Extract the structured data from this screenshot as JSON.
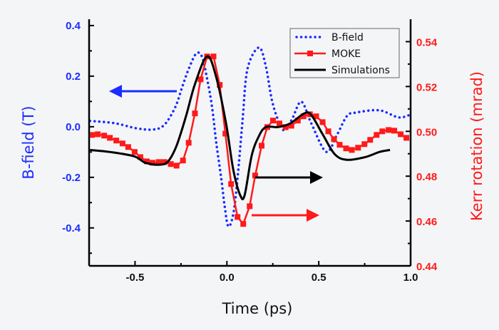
{
  "chart_data": {
    "type": "line",
    "xlabel": "Time (ps)",
    "xlim": [
      -0.75,
      1.0
    ],
    "xticks": [
      "-0.5",
      "0.0",
      "0.5",
      "1.0"
    ],
    "ylabel_left": "B-field (T)",
    "ylim_left": [
      -0.55,
      0.425
    ],
    "yticks_left": [
      "0.4",
      "0.2",
      "0.0",
      "-0.2",
      "-0.4"
    ],
    "ylabel_right": "Kerr rotation (mrad)",
    "ylim_right": [
      0.44,
      0.55
    ],
    "yticks_right": [
      "0.54",
      "0.52",
      "0.50",
      "0.48",
      "0.46",
      "0.44"
    ],
    "grid": false,
    "legend_position": "top-right",
    "colors": {
      "bfield": "#1a2cff",
      "moke": "#ff1a1a",
      "sim": "#000000",
      "left_axis": "#1a2cff",
      "right_axis": "#ff1a1a"
    },
    "series": [
      {
        "name": "B-field",
        "axis": "left",
        "style": "dotted",
        "x": [
          -0.745,
          -0.61,
          -0.494,
          -0.4,
          -0.34,
          -0.28,
          -0.243,
          -0.205,
          -0.166,
          -0.135,
          -0.108,
          -0.081,
          -0.058,
          -0.031,
          -0.012,
          0.008,
          0.035,
          0.058,
          0.085,
          0.112,
          0.174,
          0.212,
          0.251,
          0.309,
          0.355,
          0.405,
          0.459,
          0.54,
          0.598,
          0.653,
          0.703,
          0.83,
          0.934,
          1.0
        ],
        "y": [
          0.023,
          0.014,
          -0.006,
          -0.011,
          0.008,
          0.079,
          0.158,
          0.234,
          0.29,
          0.276,
          0.19,
          0.079,
          -0.062,
          -0.203,
          -0.315,
          -0.394,
          -0.344,
          -0.203,
          0.023,
          0.228,
          0.313,
          0.239,
          0.087,
          -0.014,
          0.031,
          0.099,
          0.014,
          -0.099,
          -0.034,
          0.042,
          0.056,
          0.065,
          0.037,
          0.048
        ]
      },
      {
        "name": "MOKE",
        "axis": "right",
        "style": "line-square",
        "x": [
          -0.734,
          -0.703,
          -0.668,
          -0.637,
          -0.602,
          -0.568,
          -0.537,
          -0.502,
          -0.471,
          -0.436,
          -0.405,
          -0.371,
          -0.34,
          -0.305,
          -0.274,
          -0.239,
          -0.208,
          -0.174,
          -0.143,
          -0.108,
          -0.073,
          -0.039,
          -0.008,
          0.023,
          0.058,
          0.089,
          0.124,
          0.154,
          0.189,
          0.22,
          0.251,
          0.286,
          0.32,
          0.351,
          0.386,
          0.417,
          0.452,
          0.486,
          0.521,
          0.552,
          0.583,
          0.614,
          0.649,
          0.68,
          0.714,
          0.749,
          0.78,
          0.815,
          0.846,
          0.88,
          0.911,
          0.946,
          0.977
        ],
        "y": [
          0.4984,
          0.4987,
          0.4981,
          0.4971,
          0.4959,
          0.4946,
          0.493,
          0.4908,
          0.4885,
          0.4866,
          0.486,
          0.4863,
          0.4863,
          0.4854,
          0.4847,
          0.487,
          0.4949,
          0.508,
          0.5232,
          0.5334,
          0.5334,
          0.5207,
          0.499,
          0.4765,
          0.4618,
          0.4587,
          0.4666,
          0.4803,
          0.4936,
          0.5019,
          0.5048,
          0.5035,
          0.5019,
          0.5025,
          0.5048,
          0.5067,
          0.5076,
          0.5067,
          0.5041,
          0.5,
          0.4965,
          0.494,
          0.4924,
          0.4917,
          0.4927,
          0.4943,
          0.4962,
          0.4984,
          0.5,
          0.5006,
          0.5003,
          0.4987,
          0.4971
        ]
      },
      {
        "name": "Simulations",
        "axis": "right",
        "style": "solid",
        "x": [
          -0.745,
          -0.637,
          -0.506,
          -0.444,
          -0.367,
          -0.32,
          -0.274,
          -0.224,
          -0.174,
          -0.108,
          -0.058,
          -0.004,
          0.035,
          0.073,
          0.097,
          0.135,
          0.174,
          0.212,
          0.278,
          0.344,
          0.421,
          0.459,
          0.521,
          0.587,
          0.653,
          0.753,
          0.83,
          0.888
        ],
        "y": [
          0.4917,
          0.4908,
          0.4889,
          0.486,
          0.4851,
          0.4866,
          0.4936,
          0.5064,
          0.521,
          0.5334,
          0.5242,
          0.5032,
          0.4828,
          0.4714,
          0.4717,
          0.4892,
          0.4978,
          0.5019,
          0.5019,
          0.5035,
          0.508,
          0.5073,
          0.4987,
          0.4898,
          0.4873,
          0.4885,
          0.4908,
          0.4917
        ]
      }
    ],
    "annotations": [
      {
        "type": "arrow",
        "direction": "left",
        "color": "#1a2cff",
        "meaning": "B-field series uses left axis"
      },
      {
        "type": "arrow",
        "direction": "right",
        "color": "#000000",
        "meaning": "Simulations series uses right axis"
      },
      {
        "type": "arrow",
        "direction": "right",
        "color": "#ff1a1a",
        "meaning": "MOKE series uses right axis"
      }
    ]
  }
}
